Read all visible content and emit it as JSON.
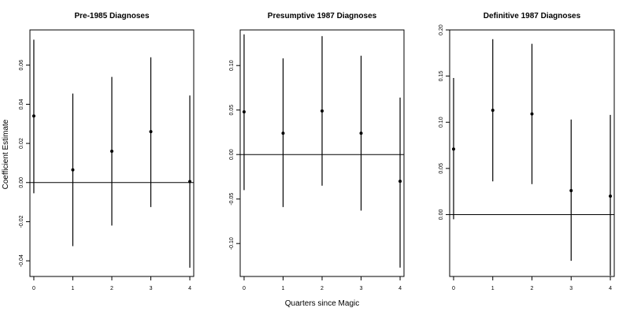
{
  "shared": {
    "xlabel": "Quarters since Magic",
    "ylabel": "Coefficient Estimate"
  },
  "chart_data": [
    {
      "type": "scatter",
      "title": "Pre-1985 Diagnoses",
      "xlabel": "",
      "ylabel": "Coefficient Estimate",
      "xlim": [
        -0.1,
        4.1
      ],
      "ylim": [
        -0.048,
        0.078
      ],
      "x": [
        0,
        1,
        2,
        3,
        4
      ],
      "y": [
        0.034,
        0.0065,
        0.016,
        0.026,
        0.0005
      ],
      "lower": [
        -0.0055,
        -0.0325,
        -0.022,
        -0.0125,
        -0.0435
      ],
      "upper": [
        0.073,
        0.0455,
        0.054,
        0.064,
        0.0445
      ],
      "xticks": [
        0,
        1,
        2,
        3,
        4
      ],
      "yticks": [
        -0.04,
        -0.02,
        0.0,
        0.02,
        0.04,
        0.06
      ],
      "ytick_labels": [
        "-0.04",
        "-0.02",
        "0.00",
        "0.02",
        "0.04",
        "0.06"
      ],
      "hline": 0,
      "grid": false
    },
    {
      "type": "scatter",
      "title": "Presumptive 1987 Diagnoses",
      "xlabel": "Quarters since Magic",
      "ylabel": "",
      "xlim": [
        -0.1,
        4.1
      ],
      "ylim": [
        -0.137,
        0.14
      ],
      "x": [
        0,
        1,
        2,
        3,
        4
      ],
      "y": [
        0.048,
        0.024,
        0.049,
        0.024,
        -0.03
      ],
      "lower": [
        -0.04,
        -0.059,
        -0.035,
        -0.063,
        -0.127
      ],
      "upper": [
        0.135,
        0.108,
        0.133,
        0.111,
        0.064
      ],
      "xticks": [
        0,
        1,
        2,
        3,
        4
      ],
      "yticks": [
        -0.1,
        -0.05,
        0.0,
        0.05,
        0.1
      ],
      "ytick_labels": [
        "-0.10",
        "-0.05",
        "0.00",
        "0.05",
        "0.10"
      ],
      "hline": 0,
      "grid": false
    },
    {
      "type": "scatter",
      "title": "Definitive 1987 Diagnoses",
      "xlabel": "",
      "ylabel": "",
      "xlim": [
        -0.1,
        4.1
      ],
      "ylim": [
        -0.067,
        0.2
      ],
      "x": [
        0,
        1,
        2,
        3,
        4
      ],
      "y": [
        0.071,
        0.113,
        0.109,
        0.026,
        0.02
      ],
      "lower": [
        -0.005,
        0.036,
        0.033,
        -0.05,
        -0.066
      ],
      "upper": [
        0.148,
        0.19,
        0.185,
        0.103,
        0.108
      ],
      "xticks": [
        0,
        1,
        2,
        3,
        4
      ],
      "yticks": [
        0.0,
        0.05,
        0.1,
        0.15,
        0.2
      ],
      "ytick_labels": [
        "0.00",
        "0.05",
        "0.10",
        "0.15",
        "0.20"
      ],
      "hline": 0,
      "grid": false
    }
  ]
}
